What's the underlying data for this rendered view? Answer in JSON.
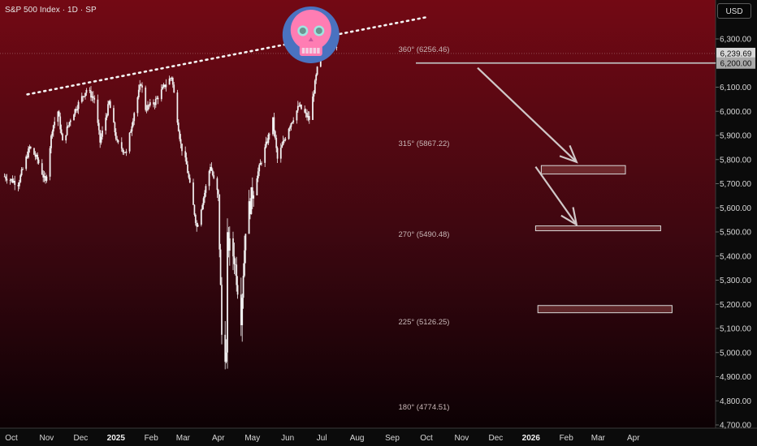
{
  "header": {
    "title": "S&P 500 Index · 1D · SP",
    "currency": "USD"
  },
  "chart_data": {
    "type": "candlestick",
    "ylim": [
      4700,
      6400
    ],
    "y_ticks": [
      4700,
      4800,
      4900,
      5000,
      5100,
      5200,
      5300,
      5400,
      5500,
      5600,
      5700,
      5800,
      5900,
      6000,
      6100,
      6200,
      6300
    ],
    "y_tick_labels": [
      "4,700.00",
      "4,800.00",
      "4,900.00",
      "5,000.00",
      "5,100.00",
      "5,200.00",
      "5,300.00",
      "5,400.00",
      "5,500.00",
      "5,600.00",
      "5,700.00",
      "5,800.00",
      "5,900.00",
      "6,000.00",
      "6,100.00",
      "6,200.00",
      "6,300.00"
    ],
    "x_labels": [
      {
        "label": "Oct",
        "date": "2024-10-01"
      },
      {
        "label": "Nov",
        "date": "2024-11-01"
      },
      {
        "label": "Dec",
        "date": "2024-12-01"
      },
      {
        "label": "2025",
        "date": "2025-01-01",
        "bold": true
      },
      {
        "label": "Feb",
        "date": "2025-02-01"
      },
      {
        "label": "Mar",
        "date": "2025-03-01"
      },
      {
        "label": "Apr",
        "date": "2025-04-01"
      },
      {
        "label": "May",
        "date": "2025-05-01"
      },
      {
        "label": "Jun",
        "date": "2025-06-01"
      },
      {
        "label": "Jul",
        "date": "2025-07-01"
      },
      {
        "label": "Aug",
        "date": "2025-08-01"
      },
      {
        "label": "Sep",
        "date": "2025-09-01"
      },
      {
        "label": "Oct",
        "date": "2025-10-01"
      },
      {
        "label": "Nov",
        "date": "2025-11-01"
      },
      {
        "label": "Dec",
        "date": "2025-12-01"
      },
      {
        "label": "2026",
        "date": "2026-01-01",
        "bold": true
      },
      {
        "label": "Feb",
        "date": "2026-02-01"
      },
      {
        "label": "Mar",
        "date": "2026-03-01"
      },
      {
        "label": "Apr",
        "date": "2026-04-01"
      }
    ],
    "price_path": [
      [
        "2024-09-25",
        5730
      ],
      [
        "2024-10-07",
        5700
      ],
      [
        "2024-10-17",
        5850
      ],
      [
        "2024-10-24",
        5800
      ],
      [
        "2024-10-31",
        5705
      ],
      [
        "2024-11-06",
        5930
      ],
      [
        "2024-11-11",
        6000
      ],
      [
        "2024-11-15",
        5870
      ],
      [
        "2024-11-22",
        5970
      ],
      [
        "2024-11-29",
        6032
      ],
      [
        "2024-12-06",
        6090
      ],
      [
        "2024-12-13",
        6051
      ],
      [
        "2024-12-18",
        5872
      ],
      [
        "2024-12-26",
        6037
      ],
      [
        "2025-01-02",
        5868
      ],
      [
        "2025-01-10",
        5827
      ],
      [
        "2025-01-17",
        5997
      ],
      [
        "2025-01-23",
        6119
      ],
      [
        "2025-01-27",
        6012
      ],
      [
        "2025-02-04",
        6037
      ],
      [
        "2025-02-14",
        6115
      ],
      [
        "2025-02-19",
        6144
      ],
      [
        "2025-02-27",
        5861
      ],
      [
        "2025-03-04",
        5778
      ],
      [
        "2025-03-13",
        5521
      ],
      [
        "2025-03-20",
        5663
      ],
      [
        "2025-03-25",
        5776
      ],
      [
        "2025-04-01",
        5633
      ],
      [
        "2025-04-04",
        5074
      ],
      [
        "2025-04-08",
        4982
      ],
      [
        "2025-04-09",
        5457
      ],
      [
        "2025-04-15",
        5396
      ],
      [
        "2025-04-21",
        5158
      ],
      [
        "2025-04-25",
        5525
      ],
      [
        "2025-05-02",
        5686
      ],
      [
        "2025-05-12",
        5844
      ],
      [
        "2025-05-19",
        5963
      ],
      [
        "2025-05-23",
        5802
      ],
      [
        "2025-06-02",
        5935
      ],
      [
        "2025-06-11",
        6022
      ],
      [
        "2025-06-20",
        5967
      ],
      [
        "2025-06-27",
        6173
      ],
      [
        "2025-07-03",
        6279
      ],
      [
        "2025-07-10",
        6280
      ],
      [
        "2025-07-14",
        6268
      ]
    ],
    "last_price": 6239.69,
    "last_price_label": "6,239.69",
    "level_price": 6200,
    "level_label": "6,200.00",
    "fib_levels": [
      {
        "label": "360° (6256.46)",
        "value": 6256.46
      },
      {
        "label": "315° (5867.22)",
        "value": 5867.22
      },
      {
        "label": "270° (5490.48)",
        "value": 5490.48
      },
      {
        "label": "225° (5126.25)",
        "value": 5126.25
      },
      {
        "label": "180° (4774.51)",
        "value": 4774.51
      }
    ],
    "trendline": {
      "start": [
        "2024-10-15",
        6070
      ],
      "end": [
        "2025-10-01",
        6390
      ]
    },
    "target_zones": [
      {
        "start": "2026-01-10",
        "end": "2026-03-25",
        "top": 5775,
        "bottom": 5740
      },
      {
        "start": "2026-01-05",
        "end": "2026-04-25",
        "top": 5525,
        "bottom": 5505
      },
      {
        "start": "2026-01-07",
        "end": "2026-05-05",
        "top": 5195,
        "bottom": 5165
      }
    ],
    "arrows": [
      {
        "from": [
          "2025-11-15",
          6180
        ],
        "to": [
          "2026-02-10",
          5790
        ]
      },
      {
        "from": [
          "2026-01-05",
          5770
        ],
        "to": [
          "2026-02-10",
          5530
        ]
      }
    ],
    "skull_anchor": [
      "2025-06-20",
      6290
    ],
    "colors": {
      "candle": "#f2f2f2",
      "trendline": "#f5f5f5",
      "level_line": "#bdbdbd",
      "zone_fill": "#8a4444",
      "zone_stroke": "#d9d9d9",
      "skull_pink": "#ff7db3",
      "skull_blue": "#4a72c0",
      "skull_eye": "#9ee6e0"
    }
  }
}
